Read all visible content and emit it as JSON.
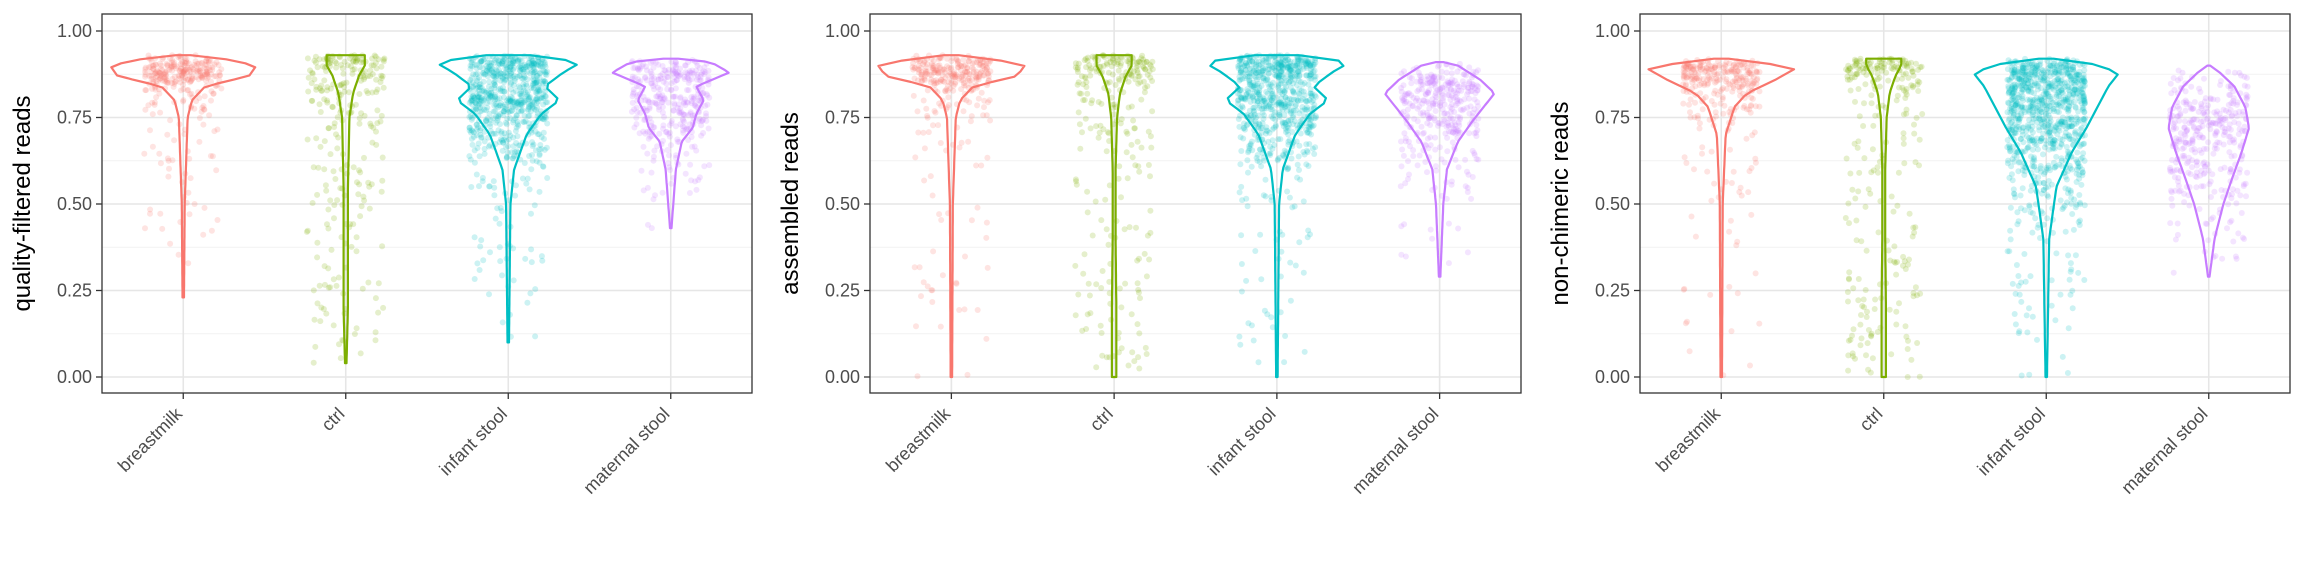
{
  "chart_data": [
    {
      "type": "violin",
      "ylabel": "quality-filtered reads",
      "ylim": [
        0,
        1.05
      ],
      "y_ticks": [
        "0.00",
        "0.25",
        "0.50",
        "0.75",
        "1.00"
      ],
      "categories": [
        "breastmilk",
        "ctrl",
        "infant stool",
        "maternal stool"
      ],
      "grid": true,
      "series": [
        {
          "category": "breastmilk",
          "color": "#F8766D",
          "min": 0.23,
          "max": 0.93,
          "density_y": [
            0.23,
            0.5,
            0.75,
            0.8,
            0.84,
            0.87,
            0.9,
            0.92,
            0.93
          ],
          "density_w": [
            0.01,
            0.02,
            0.06,
            0.12,
            0.3,
            0.9,
            1.0,
            0.55,
            0.1
          ],
          "points": 300
        },
        {
          "category": "ctrl",
          "color": "#7CAE00",
          "min": 0.04,
          "max": 0.93,
          "density_y": [
            0.04,
            0.2,
            0.35,
            0.55,
            0.75,
            0.82,
            0.87,
            0.9,
            0.93
          ],
          "density_w": [
            0.01,
            0.03,
            0.03,
            0.03,
            0.05,
            0.1,
            0.18,
            0.26,
            0.26
          ],
          "points": 260
        },
        {
          "category": "infant stool",
          "color": "#00BFC4",
          "min": 0.1,
          "max": 0.93,
          "density_y": [
            0.1,
            0.5,
            0.6,
            0.7,
            0.76,
            0.8,
            0.84,
            0.88,
            0.91,
            0.93
          ],
          "density_w": [
            0.01,
            0.03,
            0.08,
            0.25,
            0.45,
            0.7,
            0.5,
            0.75,
            1.0,
            0.3
          ],
          "points": 700
        },
        {
          "category": "maternal stool",
          "color": "#C77CFF",
          "min": 0.43,
          "max": 0.92,
          "density_y": [
            0.43,
            0.6,
            0.68,
            0.72,
            0.76,
            0.8,
            0.84,
            0.88,
            0.91,
            0.92
          ],
          "density_w": [
            0.01,
            0.07,
            0.15,
            0.3,
            0.35,
            0.45,
            0.35,
            0.8,
            0.55,
            0.1
          ],
          "points": 350
        }
      ]
    },
    {
      "type": "violin",
      "ylabel": "assembled reads",
      "ylim": [
        0,
        1.05
      ],
      "y_ticks": [
        "0.00",
        "0.25",
        "0.50",
        "0.75",
        "1.00"
      ],
      "categories": [
        "breastmilk",
        "ctrl",
        "infant stool",
        "maternal stool"
      ],
      "grid": true,
      "series": [
        {
          "category": "breastmilk",
          "color": "#F8766D",
          "min": 0.0,
          "max": 0.93,
          "density_y": [
            0.0,
            0.5,
            0.75,
            0.8,
            0.84,
            0.87,
            0.9,
            0.92,
            0.93
          ],
          "density_w": [
            0.01,
            0.02,
            0.06,
            0.12,
            0.3,
            0.9,
            1.0,
            0.55,
            0.1
          ],
          "points": 300
        },
        {
          "category": "ctrl",
          "color": "#7CAE00",
          "min": 0.0,
          "max": 0.93,
          "density_y": [
            0.0,
            0.2,
            0.4,
            0.6,
            0.75,
            0.82,
            0.87,
            0.9,
            0.93
          ],
          "density_w": [
            0.03,
            0.03,
            0.02,
            0.02,
            0.04,
            0.08,
            0.16,
            0.24,
            0.24
          ],
          "points": 260
        },
        {
          "category": "infant stool",
          "color": "#00BFC4",
          "min": 0.0,
          "max": 0.93,
          "density_y": [
            0.0,
            0.5,
            0.6,
            0.7,
            0.76,
            0.8,
            0.84,
            0.88,
            0.91,
            0.93
          ],
          "density_w": [
            0.01,
            0.03,
            0.08,
            0.25,
            0.45,
            0.7,
            0.5,
            0.75,
            1.0,
            0.3
          ],
          "points": 700
        },
        {
          "category": "maternal stool",
          "color": "#C77CFF",
          "min": 0.29,
          "max": 0.91,
          "density_y": [
            0.29,
            0.5,
            0.6,
            0.68,
            0.74,
            0.78,
            0.82,
            0.86,
            0.9,
            0.91
          ],
          "density_w": [
            0.01,
            0.05,
            0.1,
            0.25,
            0.45,
            0.6,
            0.75,
            0.55,
            0.25,
            0.05
          ],
          "points": 350
        }
      ]
    },
    {
      "type": "violin",
      "ylabel": "non-chimeric reads",
      "ylim": [
        0,
        1.05
      ],
      "y_ticks": [
        "0.00",
        "0.25",
        "0.50",
        "0.75",
        "1.00"
      ],
      "categories": [
        "breastmilk",
        "ctrl",
        "infant stool",
        "maternal stool"
      ],
      "grid": true,
      "series": [
        {
          "category": "breastmilk",
          "color": "#F8766D",
          "min": 0.0,
          "max": 0.92,
          "density_y": [
            0.0,
            0.5,
            0.7,
            0.78,
            0.82,
            0.86,
            0.89,
            0.91,
            0.92
          ],
          "density_w": [
            0.01,
            0.02,
            0.06,
            0.18,
            0.35,
            0.75,
            1.0,
            0.55,
            0.1
          ],
          "points": 300
        },
        {
          "category": "ctrl",
          "color": "#7CAE00",
          "min": 0.0,
          "max": 0.92,
          "density_y": [
            0.0,
            0.2,
            0.4,
            0.6,
            0.75,
            0.82,
            0.87,
            0.9,
            0.92
          ],
          "density_w": [
            0.03,
            0.03,
            0.02,
            0.02,
            0.04,
            0.08,
            0.16,
            0.24,
            0.24
          ],
          "points": 260
        },
        {
          "category": "infant stool",
          "color": "#00BFC4",
          "min": 0.0,
          "max": 0.92,
          "density_y": [
            0.0,
            0.4,
            0.55,
            0.65,
            0.72,
            0.78,
            0.84,
            0.88,
            0.91,
            0.92
          ],
          "density_w": [
            0.01,
            0.04,
            0.14,
            0.35,
            0.55,
            0.7,
            0.85,
            1.0,
            0.55,
            0.1
          ],
          "points": 900
        },
        {
          "category": "maternal stool",
          "color": "#C77CFF",
          "min": 0.29,
          "max": 0.9,
          "density_y": [
            0.29,
            0.4,
            0.5,
            0.58,
            0.65,
            0.72,
            0.78,
            0.84,
            0.88,
            0.9
          ],
          "density_w": [
            0.01,
            0.08,
            0.2,
            0.33,
            0.45,
            0.55,
            0.5,
            0.35,
            0.15,
            0.02
          ],
          "points": 350
        }
      ]
    }
  ]
}
